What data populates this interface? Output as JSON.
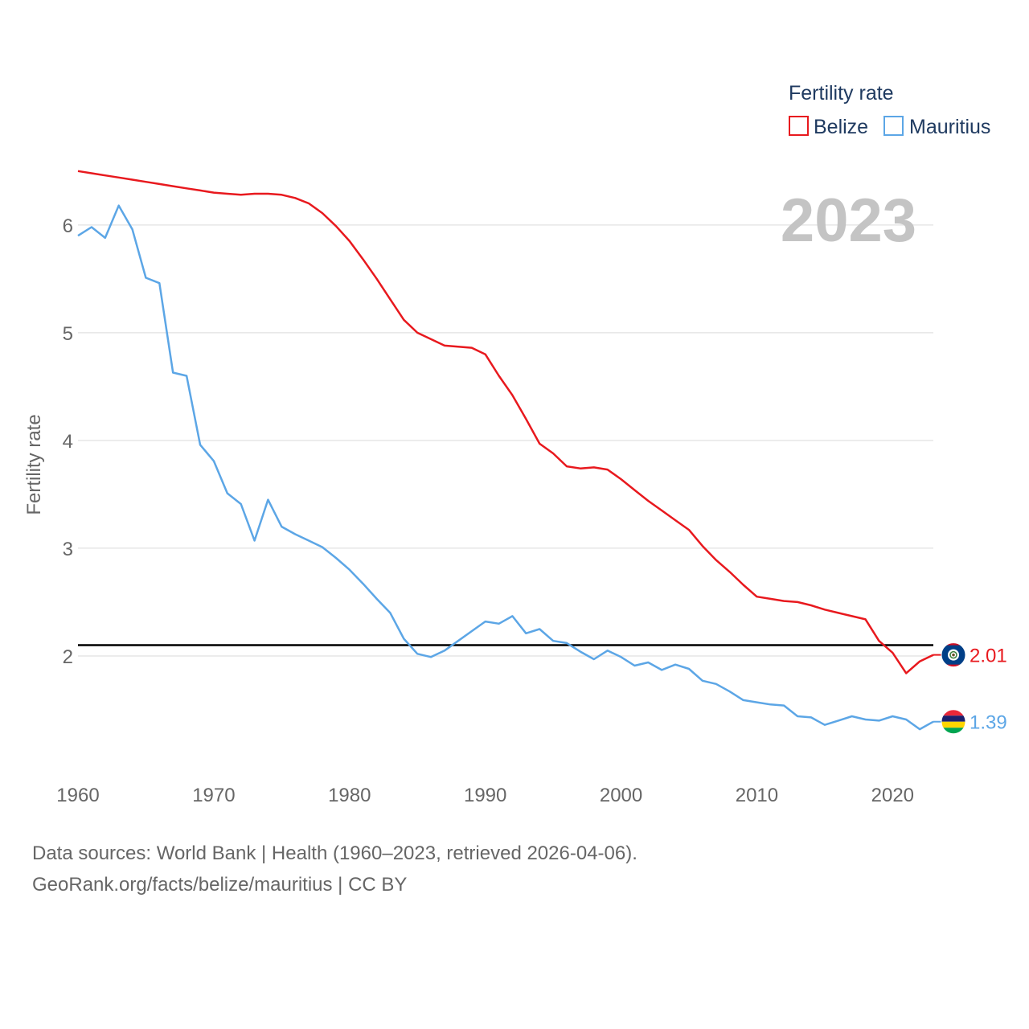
{
  "chart_data": {
    "type": "line",
    "title": "Fertility rate",
    "year": "2023",
    "ylabel": "Fertility rate",
    "xlabel": "",
    "xlim": [
      1960,
      2023
    ],
    "ylim": [
      1,
      6.7
    ],
    "yticks": [
      2,
      3,
      4,
      5,
      6
    ],
    "xticks": [
      1960,
      1970,
      1980,
      1990,
      2000,
      2010,
      2020
    ],
    "reference_line": 2.1,
    "grid": true,
    "legend": "top-right",
    "series": [
      {
        "name": "Belize",
        "color": "#e8191e",
        "end_label": "2.01",
        "flag": "belize-flag-icon",
        "x": [
          1960,
          1961,
          1962,
          1963,
          1964,
          1965,
          1966,
          1967,
          1968,
          1969,
          1970,
          1971,
          1972,
          1973,
          1974,
          1975,
          1976,
          1977,
          1978,
          1979,
          1980,
          1981,
          1982,
          1983,
          1984,
          1985,
          1986,
          1987,
          1988,
          1989,
          1990,
          1991,
          1992,
          1993,
          1994,
          1995,
          1996,
          1997,
          1998,
          1999,
          2000,
          2001,
          2002,
          2003,
          2004,
          2005,
          2006,
          2007,
          2008,
          2009,
          2010,
          2011,
          2012,
          2013,
          2014,
          2015,
          2016,
          2017,
          2018,
          2019,
          2020,
          2021,
          2022,
          2023
        ],
        "values": [
          6.5,
          6.48,
          6.46,
          6.44,
          6.42,
          6.4,
          6.38,
          6.36,
          6.34,
          6.32,
          6.3,
          6.29,
          6.28,
          6.29,
          6.29,
          6.28,
          6.25,
          6.2,
          6.11,
          5.99,
          5.85,
          5.68,
          5.5,
          5.31,
          5.12,
          5.0,
          4.94,
          4.88,
          4.87,
          4.86,
          4.8,
          4.6,
          4.42,
          4.2,
          3.97,
          3.88,
          3.76,
          3.74,
          3.75,
          3.73,
          3.64,
          3.54,
          3.44,
          3.35,
          3.26,
          3.17,
          3.02,
          2.89,
          2.78,
          2.66,
          2.55,
          2.53,
          2.51,
          2.5,
          2.47,
          2.43,
          2.4,
          2.37,
          2.34,
          2.14,
          2.03,
          1.84,
          1.95,
          2.01
        ]
      },
      {
        "name": "Mauritius",
        "color": "#5ca6e6",
        "end_label": "1.39",
        "flag": "mauritius-flag-icon",
        "x": [
          1960,
          1961,
          1962,
          1963,
          1964,
          1965,
          1966,
          1967,
          1968,
          1969,
          1970,
          1971,
          1972,
          1973,
          1974,
          1975,
          1976,
          1977,
          1978,
          1979,
          1980,
          1981,
          1982,
          1983,
          1984,
          1985,
          1986,
          1987,
          1988,
          1989,
          1990,
          1991,
          1992,
          1993,
          1994,
          1995,
          1996,
          1997,
          1998,
          1999,
          2000,
          2001,
          2002,
          2003,
          2004,
          2005,
          2006,
          2007,
          2008,
          2009,
          2010,
          2011,
          2012,
          2013,
          2014,
          2015,
          2016,
          2017,
          2018,
          2019,
          2020,
          2021,
          2022,
          2023
        ],
        "values": [
          5.9,
          5.98,
          5.88,
          6.18,
          5.96,
          5.51,
          5.46,
          4.63,
          4.6,
          3.96,
          3.81,
          3.51,
          3.41,
          3.07,
          3.45,
          3.2,
          3.13,
          3.07,
          3.01,
          2.91,
          2.8,
          2.67,
          2.53,
          2.4,
          2.16,
          2.02,
          1.99,
          2.05,
          2.14,
          2.23,
          2.32,
          2.3,
          2.37,
          2.21,
          2.25,
          2.14,
          2.12,
          2.04,
          1.97,
          2.05,
          1.99,
          1.91,
          1.94,
          1.87,
          1.92,
          1.88,
          1.77,
          1.74,
          1.67,
          1.59,
          1.57,
          1.55,
          1.54,
          1.44,
          1.43,
          1.36,
          1.4,
          1.44,
          1.41,
          1.4,
          1.44,
          1.41,
          1.32,
          1.39
        ]
      }
    ]
  },
  "source": {
    "line1": "Data sources: World Bank | Health (1960–2023, retrieved 2026-04-06).",
    "line2": "GeoRank.org/facts/belize/mauritius | CC BY"
  }
}
